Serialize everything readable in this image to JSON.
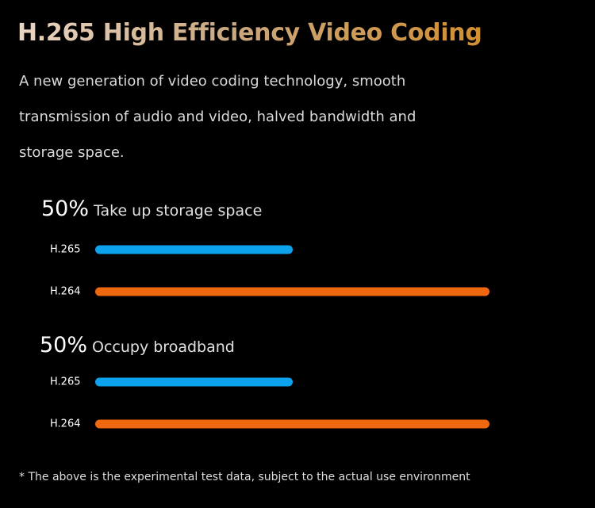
{
  "header": {
    "title": "H.265 High Efficiency Video Coding",
    "description": "A new generation of video coding technology, smooth transmission of audio and video, halved bandwidth and storage space."
  },
  "chart_data": {
    "type": "bar",
    "orientation": "horizontal",
    "colors": {
      "H.265": "#0da2ec",
      "H.264": "#ef6810"
    },
    "groups": [
      {
        "percent_label": "50%",
        "title": "Take up storage space",
        "categories": [
          "H.265",
          "H.264"
        ],
        "values": [
          50,
          100
        ]
      },
      {
        "percent_label": "50%",
        "title": "Occupy broadband",
        "categories": [
          "H.265",
          "H.264"
        ],
        "values": [
          50,
          100
        ]
      }
    ]
  },
  "footnote": "* The above is the experimental test data, subject to the actual use environment"
}
